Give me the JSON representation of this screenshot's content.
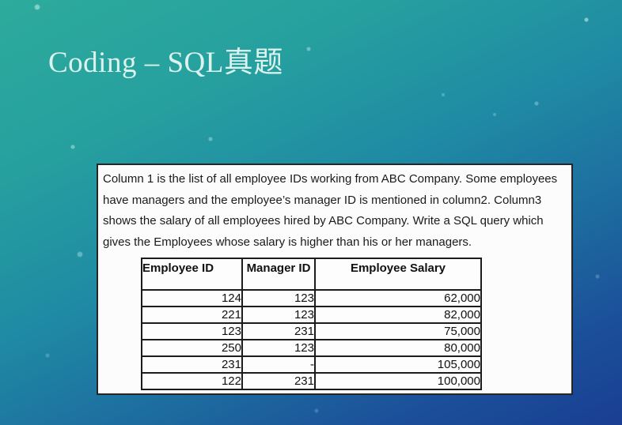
{
  "slide": {
    "title": "Coding – SQL真题",
    "colors": {
      "background_top_left": "#2ba699",
      "background_bottom_right": "#1b3f94",
      "title_text": "#dbf2ed",
      "panel_background": "#fcfcfc",
      "panel_border": "#262626",
      "table_border": "#1c1c1c",
      "body_text": "#1a1a1a"
    }
  },
  "problem": {
    "description": "Column 1 is the list of all employee IDs working from ABC Company.  Some employees have managers and the employee’s manager ID is mentioned in column2. Column3 shows the salary of all employees hired by ABC Company. Write a SQL query which gives the Employees whose salary is higher than his or her managers."
  },
  "employee_table": {
    "headers": [
      "Employee ID",
      "Manager ID",
      "Employee Salary"
    ],
    "rows": [
      [
        "124",
        "123",
        "62,000"
      ],
      [
        "221",
        "123",
        "82,000"
      ],
      [
        "123",
        "231",
        "75,000"
      ],
      [
        "250",
        "123",
        "80,000"
      ],
      [
        "231",
        "-",
        "105,000"
      ],
      [
        "122",
        "231",
        "100,000"
      ]
    ]
  }
}
